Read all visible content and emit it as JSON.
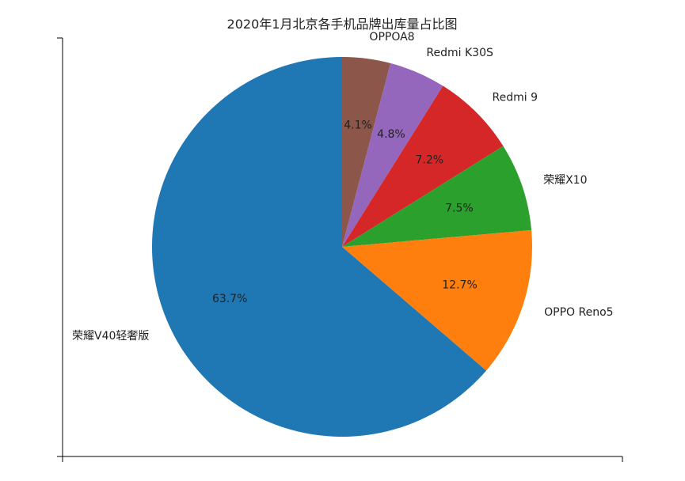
{
  "chart_data": {
    "type": "pie",
    "title": "2020年1月北京各手机品牌出库量占比图",
    "slices": [
      {
        "label": "OPPOA8",
        "value": 4.1,
        "pct_text": "4.1%",
        "color": "#8c564b"
      },
      {
        "label": "Redmi K30S",
        "value": 4.8,
        "pct_text": "4.8%",
        "color": "#9467bd"
      },
      {
        "label": "Redmi 9",
        "value": 7.2,
        "pct_text": "7.2%",
        "color": "#d62728"
      },
      {
        "label": "荣耀X10",
        "value": 7.5,
        "pct_text": "7.5%",
        "color": "#2ca02c"
      },
      {
        "label": "OPPO Reno5",
        "value": 12.7,
        "pct_text": "12.7%",
        "color": "#ff7f0e"
      },
      {
        "label": "荣耀V40轻奢版",
        "value": 63.7,
        "pct_text": "63.7%",
        "color": "#1f77b4"
      }
    ],
    "start_angle": "top",
    "direction": "clockwise",
    "grid": false
  }
}
